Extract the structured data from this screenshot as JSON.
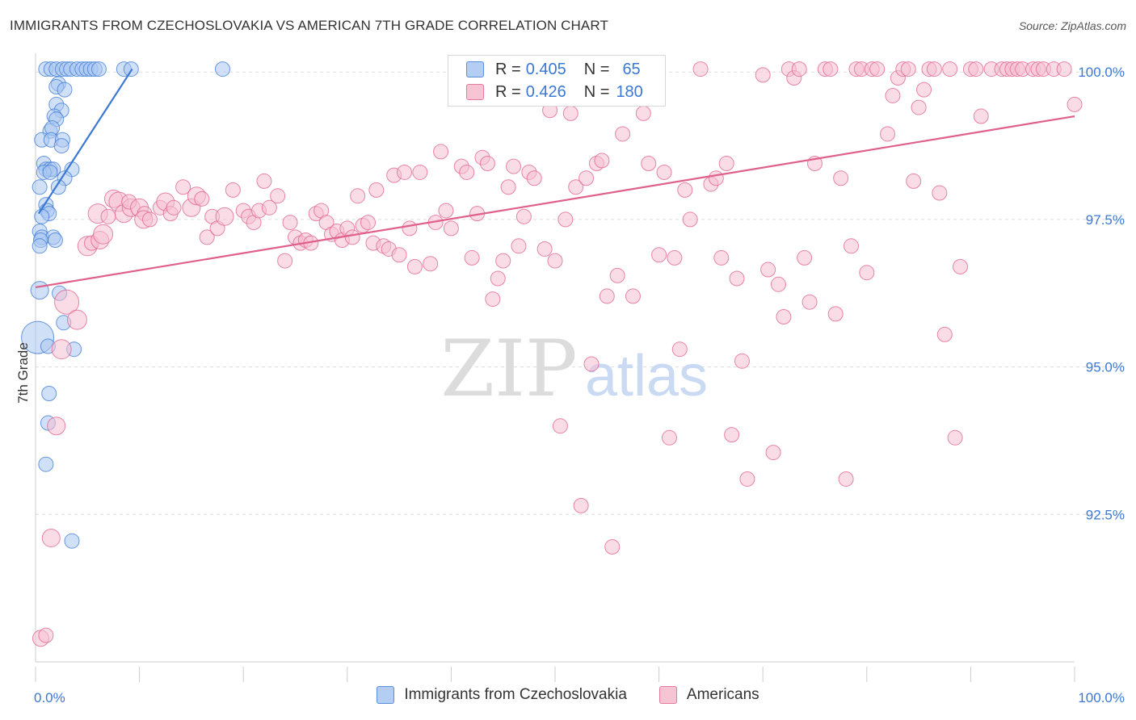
{
  "title": "IMMIGRANTS FROM CZECHOSLOVAKIA VS AMERICAN 7TH GRADE CORRELATION CHART",
  "source": "Source: ZipAtlas.com",
  "watermark": {
    "zip": "ZIP",
    "atlas": "atlas"
  },
  "legend_stats": [
    {
      "r_label": "R =",
      "r_value": "0.405",
      "n_label": "N =",
      "n_value": "65",
      "color": "#5a8fe0",
      "fill": "#b3cdf3"
    },
    {
      "r_label": "R =",
      "r_value": "0.426",
      "n_label": "N =",
      "n_value": "180",
      "color": "#e8789e",
      "fill": "#f7c4d4"
    }
  ],
  "chart_data": {
    "type": "scatter",
    "title": "IMMIGRANTS FROM CZECHOSLOVAKIA VS AMERICAN 7TH GRADE CORRELATION CHART",
    "xlabel": "",
    "ylabel": "7th Grade",
    "xlim": [
      0,
      100
    ],
    "ylim": [
      90.0,
      100.4
    ],
    "x_tick_labels": [
      "0.0%",
      "100.0%"
    ],
    "y_ticks": [
      92.5,
      95.0,
      97.5,
      100.0
    ],
    "y_tick_labels": [
      "92.5%",
      "95.0%",
      "97.5%",
      "100.0%"
    ],
    "grid": true,
    "legend_position": "bottom",
    "series": [
      {
        "name": "Immigrants from Czechoslovakia",
        "color": "#3a78d4",
        "fill": "#a9c6f0",
        "trend": {
          "x": [
            0.3,
            9.3
          ],
          "y": [
            97.6,
            100.05
          ]
        },
        "points": [
          [
            0.2,
            95.5,
            20
          ],
          [
            1.0,
            100.05,
            9
          ],
          [
            1.5,
            100.05,
            9
          ],
          [
            2.0,
            100.05,
            9
          ],
          [
            2.6,
            100.05,
            9
          ],
          [
            3.0,
            100.05,
            9
          ],
          [
            3.4,
            100.05,
            9
          ],
          [
            4.0,
            100.05,
            9
          ],
          [
            4.5,
            100.05,
            9
          ],
          [
            4.9,
            100.05,
            9
          ],
          [
            5.3,
            100.05,
            9
          ],
          [
            5.7,
            100.05,
            9
          ],
          [
            6.1,
            100.05,
            9
          ],
          [
            8.5,
            100.05,
            9
          ],
          [
            9.2,
            100.05,
            9
          ],
          [
            18.0,
            100.05,
            9
          ],
          [
            2.2,
            99.8,
            9
          ],
          [
            2.0,
            99.75,
            9
          ],
          [
            2.8,
            99.7,
            9
          ],
          [
            2.0,
            99.45,
            9
          ],
          [
            2.5,
            99.35,
            9
          ],
          [
            1.8,
            99.25,
            9
          ],
          [
            2.0,
            99.2,
            9
          ],
          [
            1.4,
            99.0,
            9
          ],
          [
            1.6,
            99.05,
            9
          ],
          [
            0.6,
            98.85,
            9
          ],
          [
            1.5,
            98.85,
            9
          ],
          [
            2.6,
            98.85,
            9
          ],
          [
            2.5,
            98.75,
            9
          ],
          [
            0.8,
            98.45,
            9
          ],
          [
            1.0,
            98.35,
            9
          ],
          [
            1.4,
            98.35,
            9
          ],
          [
            1.7,
            98.35,
            9
          ],
          [
            3.5,
            98.35,
            9
          ],
          [
            0.8,
            98.3,
            9
          ],
          [
            1.4,
            98.3,
            9
          ],
          [
            2.8,
            98.2,
            9
          ],
          [
            0.4,
            98.05,
            9
          ],
          [
            2.2,
            98.05,
            9
          ],
          [
            1.0,
            97.75,
            9
          ],
          [
            1.1,
            97.65,
            9
          ],
          [
            1.3,
            97.6,
            9
          ],
          [
            0.6,
            97.55,
            9
          ],
          [
            0.4,
            97.3,
            9
          ],
          [
            0.6,
            97.2,
            9
          ],
          [
            1.7,
            97.2,
            9
          ],
          [
            0.5,
            97.15,
            9
          ],
          [
            1.9,
            97.15,
            9
          ],
          [
            0.4,
            97.05,
            9
          ],
          [
            0.4,
            96.3,
            11
          ],
          [
            2.3,
            96.25,
            9
          ],
          [
            2.7,
            95.75,
            9
          ],
          [
            1.2,
            95.35,
            9
          ],
          [
            3.7,
            95.3,
            9
          ],
          [
            1.3,
            94.55,
            9
          ],
          [
            1.2,
            94.05,
            9
          ],
          [
            1.0,
            93.35,
            9
          ],
          [
            3.5,
            92.05,
            9
          ]
        ]
      },
      {
        "name": "Americans",
        "color": "#e0608c",
        "fill": "#f5bfd1",
        "trend": {
          "x": [
            0,
            100
          ],
          "y": [
            96.35,
            99.25
          ]
        },
        "points": [
          [
            0.5,
            90.4,
            10
          ],
          [
            1.0,
            90.45,
            9
          ],
          [
            1.5,
            92.1,
            11
          ],
          [
            2.0,
            94.0,
            11
          ],
          [
            2.5,
            95.3,
            12
          ],
          [
            3.0,
            96.1,
            15
          ],
          [
            4.0,
            95.8,
            12
          ],
          [
            5.0,
            97.05,
            12
          ],
          [
            5.4,
            97.1,
            9
          ],
          [
            6.2,
            97.15,
            11
          ],
          [
            6.5,
            97.25,
            12
          ],
          [
            6.0,
            97.6,
            12
          ],
          [
            7.0,
            97.55,
            9
          ],
          [
            7.5,
            97.85,
            11
          ],
          [
            8.0,
            97.8,
            12
          ],
          [
            8.5,
            97.6,
            11
          ],
          [
            9.2,
            97.7,
            11
          ],
          [
            9.0,
            97.8,
            9
          ],
          [
            10.0,
            97.7,
            11
          ],
          [
            10.5,
            97.6,
            9
          ],
          [
            10.4,
            97.5,
            11
          ],
          [
            11.0,
            97.5,
            9
          ],
          [
            12.0,
            97.7,
            9
          ],
          [
            12.5,
            97.8,
            11
          ],
          [
            13.0,
            97.6,
            9
          ],
          [
            13.3,
            97.7,
            9
          ],
          [
            14.2,
            98.05,
            9
          ],
          [
            15.0,
            97.7,
            11
          ],
          [
            15.5,
            97.9,
            11
          ],
          [
            16.0,
            97.85,
            9
          ],
          [
            16.5,
            97.2,
            9
          ],
          [
            17.0,
            97.55,
            9
          ],
          [
            17.5,
            97.35,
            9
          ],
          [
            18.2,
            97.55,
            11
          ],
          [
            19.0,
            98.0,
            9
          ],
          [
            20.0,
            97.65,
            9
          ],
          [
            20.5,
            97.55,
            9
          ],
          [
            21.0,
            97.45,
            9
          ],
          [
            21.5,
            97.65,
            9
          ],
          [
            22.0,
            98.15,
            9
          ],
          [
            22.5,
            97.7,
            9
          ],
          [
            23.3,
            97.9,
            9
          ],
          [
            24.0,
            96.8,
            9
          ],
          [
            24.5,
            97.45,
            9
          ],
          [
            25.0,
            97.2,
            9
          ],
          [
            25.5,
            97.1,
            9
          ],
          [
            26.0,
            97.15,
            9
          ],
          [
            26.5,
            97.1,
            9
          ],
          [
            27.0,
            97.6,
            9
          ],
          [
            27.5,
            97.65,
            9
          ],
          [
            28.0,
            97.45,
            9
          ],
          [
            28.5,
            97.25,
            9
          ],
          [
            29.0,
            97.3,
            9
          ],
          [
            29.5,
            97.15,
            9
          ],
          [
            30.0,
            97.35,
            9
          ],
          [
            30.5,
            97.2,
            9
          ],
          [
            31.0,
            97.9,
            9
          ],
          [
            31.5,
            97.4,
            9
          ],
          [
            32.0,
            97.45,
            9
          ],
          [
            32.5,
            97.1,
            9
          ],
          [
            32.8,
            98.0,
            9
          ],
          [
            33.5,
            97.05,
            9
          ],
          [
            34.0,
            97.0,
            9
          ],
          [
            34.5,
            98.25,
            9
          ],
          [
            35.0,
            96.9,
            9
          ],
          [
            35.5,
            98.3,
            9
          ],
          [
            36.0,
            97.35,
            9
          ],
          [
            36.5,
            96.7,
            9
          ],
          [
            37.0,
            98.3,
            9
          ],
          [
            38.0,
            96.75,
            9
          ],
          [
            38.5,
            97.45,
            9
          ],
          [
            39.0,
            98.65,
            9
          ],
          [
            39.5,
            97.65,
            9
          ],
          [
            40.0,
            97.35,
            9
          ],
          [
            41.0,
            98.4,
            9
          ],
          [
            41.5,
            98.3,
            9
          ],
          [
            42.0,
            96.85,
            9
          ],
          [
            42.5,
            97.6,
            9
          ],
          [
            43.0,
            98.55,
            9
          ],
          [
            43.5,
            98.45,
            9
          ],
          [
            44.0,
            96.15,
            9
          ],
          [
            44.5,
            96.5,
            9
          ],
          [
            45.0,
            96.8,
            9
          ],
          [
            45.5,
            98.05,
            9
          ],
          [
            46.0,
            98.4,
            9
          ],
          [
            46.5,
            97.05,
            9
          ],
          [
            47.0,
            97.55,
            9
          ],
          [
            47.5,
            98.3,
            9
          ],
          [
            48.0,
            98.2,
            9
          ],
          [
            49.0,
            97.0,
            9
          ],
          [
            49.5,
            99.35,
            9
          ],
          [
            50.0,
            96.8,
            9
          ],
          [
            50.5,
            94.0,
            9
          ],
          [
            51.0,
            97.5,
            9
          ],
          [
            51.5,
            99.3,
            9
          ],
          [
            52.0,
            98.05,
            9
          ],
          [
            52.5,
            92.65,
            9
          ],
          [
            53.0,
            98.2,
            9
          ],
          [
            53.5,
            95.05,
            9
          ],
          [
            54.0,
            98.45,
            9
          ],
          [
            54.5,
            98.5,
            9
          ],
          [
            55.0,
            96.2,
            9
          ],
          [
            55.5,
            91.95,
            9
          ],
          [
            56.0,
            96.55,
            9
          ],
          [
            56.5,
            98.95,
            9
          ],
          [
            57.0,
            99.7,
            9
          ],
          [
            57.5,
            96.2,
            9
          ],
          [
            58.0,
            99.6,
            9
          ],
          [
            58.5,
            99.3,
            9
          ],
          [
            59.0,
            98.45,
            9
          ],
          [
            60.0,
            96.9,
            9
          ],
          [
            60.5,
            98.3,
            9
          ],
          [
            61.0,
            93.8,
            9
          ],
          [
            61.5,
            96.85,
            9
          ],
          [
            62.0,
            95.3,
            9
          ],
          [
            62.5,
            98.0,
            9
          ],
          [
            63.0,
            97.5,
            9
          ],
          [
            64.0,
            100.05,
            9
          ],
          [
            65.0,
            98.1,
            9
          ],
          [
            65.5,
            98.2,
            9
          ],
          [
            66.0,
            96.85,
            9
          ],
          [
            66.5,
            98.45,
            9
          ],
          [
            67.0,
            93.85,
            9
          ],
          [
            67.5,
            96.5,
            9
          ],
          [
            68.0,
            95.1,
            9
          ],
          [
            68.5,
            93.1,
            9
          ],
          [
            70.0,
            99.95,
            9
          ],
          [
            70.5,
            96.65,
            9
          ],
          [
            71.0,
            93.55,
            9
          ],
          [
            71.5,
            96.4,
            9
          ],
          [
            72.0,
            95.85,
            9
          ],
          [
            72.5,
            100.05,
            9
          ],
          [
            73.0,
            99.9,
            9
          ],
          [
            73.5,
            100.05,
            9
          ],
          [
            74.0,
            96.85,
            9
          ],
          [
            74.5,
            96.1,
            9
          ],
          [
            75.0,
            98.45,
            9
          ],
          [
            76.0,
            100.05,
            9
          ],
          [
            76.5,
            100.05,
            9
          ],
          [
            77.0,
            95.9,
            9
          ],
          [
            77.5,
            98.2,
            9
          ],
          [
            78.0,
            93.1,
            9
          ],
          [
            78.5,
            97.05,
            9
          ],
          [
            79.0,
            100.05,
            9
          ],
          [
            79.5,
            100.05,
            9
          ],
          [
            80.0,
            96.6,
            9
          ],
          [
            80.5,
            100.05,
            9
          ],
          [
            81.0,
            100.05,
            9
          ],
          [
            82.0,
            98.95,
            9
          ],
          [
            82.5,
            99.6,
            9
          ],
          [
            83.0,
            99.9,
            9
          ],
          [
            83.5,
            100.05,
            9
          ],
          [
            84.0,
            100.05,
            9
          ],
          [
            84.5,
            98.15,
            9
          ],
          [
            85.0,
            99.4,
            9
          ],
          [
            85.5,
            99.7,
            9
          ],
          [
            86.0,
            100.05,
            9
          ],
          [
            86.5,
            100.05,
            9
          ],
          [
            87.0,
            97.95,
            9
          ],
          [
            87.5,
            95.55,
            9
          ],
          [
            88.0,
            100.05,
            9
          ],
          [
            88.5,
            93.8,
            9
          ],
          [
            89.0,
            96.7,
            9
          ],
          [
            90.0,
            100.05,
            9
          ],
          [
            90.5,
            100.05,
            9
          ],
          [
            91.0,
            99.25,
            9
          ],
          [
            92.0,
            100.05,
            9
          ],
          [
            93.0,
            100.05,
            9
          ],
          [
            93.5,
            100.05,
            9
          ],
          [
            94.0,
            100.05,
            9
          ],
          [
            94.5,
            100.05,
            9
          ],
          [
            95.0,
            100.05,
            9
          ],
          [
            96.0,
            100.05,
            9
          ],
          [
            96.5,
            100.05,
            9
          ],
          [
            97.0,
            100.05,
            9
          ],
          [
            98.0,
            100.05,
            9
          ],
          [
            99.0,
            100.05,
            9
          ],
          [
            100.0,
            99.45,
            9
          ]
        ]
      }
    ]
  }
}
